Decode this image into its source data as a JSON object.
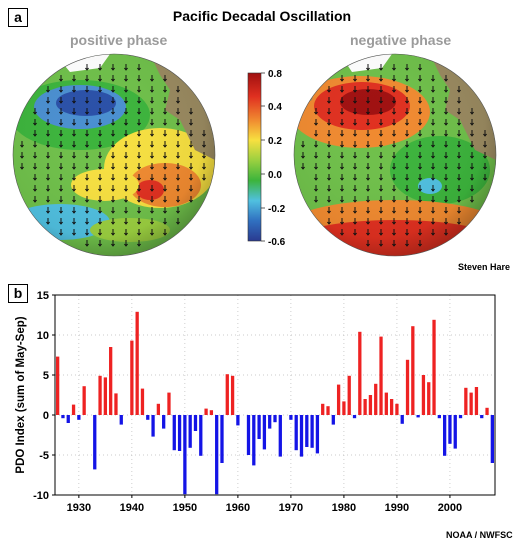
{
  "panel_a": {
    "label": "a",
    "title": "Pacific Decadal Oscillation",
    "positive_label": "positive phase",
    "negative_label": "negative phase",
    "colorbar_ticks": [
      "0.8",
      "0.4",
      "0.2",
      "0.0",
      "-0.2",
      "-0.6"
    ],
    "colorbar_colors": [
      "#a01010",
      "#e03020",
      "#f08a30",
      "#f7e040",
      "#9bd040",
      "#3cb43c",
      "#50c0e0",
      "#3070c0",
      "#2a3a90"
    ],
    "credit": "Steven Hare"
  },
  "panel_b": {
    "label": "b",
    "credit": "NOAA / NWFSC"
  },
  "chart_data": {
    "type": "bar",
    "title": "",
    "xlabel": "",
    "ylabel": "PDO Index (sum of May-Sep)",
    "ylim": [
      -10,
      15
    ],
    "xlim": [
      1925.5,
      2008.5
    ],
    "yticks": [
      "15",
      "10",
      "5",
      "0",
      "-5",
      "-10"
    ],
    "xticks": [
      "1930",
      "1940",
      "1950",
      "1960",
      "1970",
      "1980",
      "1990",
      "2000"
    ],
    "grid": true,
    "positive_color": "#ee2222",
    "negative_color": "#1414e6",
    "years": [
      1926,
      1927,
      1928,
      1929,
      1930,
      1931,
      1932,
      1933,
      1934,
      1935,
      1936,
      1937,
      1938,
      1939,
      1940,
      1941,
      1942,
      1943,
      1944,
      1945,
      1946,
      1947,
      1948,
      1949,
      1950,
      1951,
      1952,
      1953,
      1954,
      1955,
      1956,
      1957,
      1958,
      1959,
      1960,
      1961,
      1962,
      1963,
      1964,
      1965,
      1966,
      1967,
      1968,
      1969,
      1970,
      1971,
      1972,
      1973,
      1974,
      1975,
      1976,
      1977,
      1978,
      1979,
      1980,
      1981,
      1982,
      1983,
      1984,
      1985,
      1986,
      1987,
      1988,
      1989,
      1990,
      1991,
      1992,
      1993,
      1994,
      1995,
      1996,
      1997,
      1998,
      1999,
      2000,
      2001,
      2002,
      2003,
      2004,
      2005,
      2006,
      2007,
      2008
    ],
    "values": [
      7.3,
      -0.4,
      -1.0,
      1.3,
      -0.6,
      3.6,
      0.0,
      -6.8,
      4.9,
      4.7,
      8.5,
      2.7,
      -1.2,
      0.0,
      9.3,
      12.9,
      3.3,
      -0.6,
      -2.7,
      1.4,
      -1.7,
      2.8,
      -4.4,
      -4.5,
      -9.9,
      -4.1,
      -2.0,
      -5.1,
      0.8,
      0.6,
      -9.9,
      -6.0,
      5.1,
      4.9,
      -1.3,
      0.0,
      -5.0,
      -6.3,
      -3.0,
      -4.3,
      -1.7,
      -0.9,
      -5.2,
      0.0,
      -0.6,
      -4.4,
      -5.2,
      -4.0,
      -4.1,
      -4.8,
      1.4,
      1.1,
      -1.2,
      3.8,
      1.7,
      4.9,
      -0.4,
      10.4,
      2.0,
      2.5,
      3.9,
      9.8,
      2.8,
      2.0,
      1.4,
      -1.1,
      6.9,
      11.1,
      -0.3,
      5.0,
      4.1,
      11.9,
      -0.4,
      -5.1,
      -3.6,
      -4.2,
      -0.4,
      3.4,
      2.8,
      3.5,
      -0.4,
      0.9,
      -6.0
    ]
  }
}
